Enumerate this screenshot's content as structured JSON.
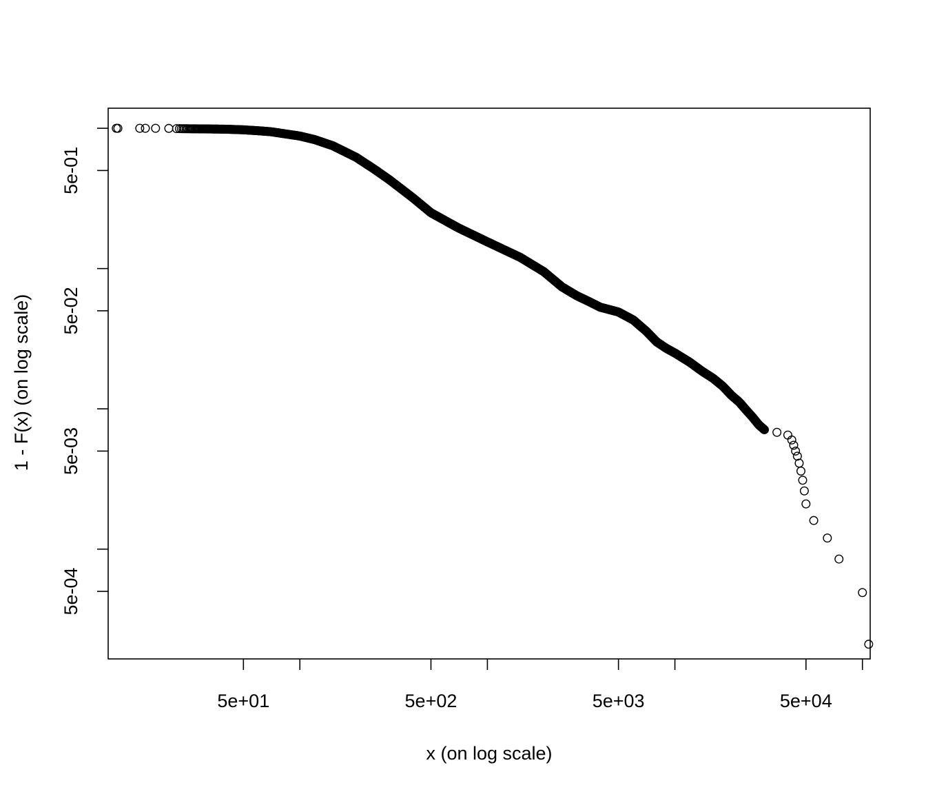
{
  "chart_data": {
    "type": "scatter",
    "title": "",
    "xlabel": "x (on log scale)",
    "ylabel": "1 - F(x) (on log scale)",
    "x_scale": "log",
    "y_scale": "log",
    "xlim": [
      9.5,
      110000
    ],
    "ylim": [
      0.000165,
      1.39
    ],
    "grid": false,
    "legend": "none",
    "marker": "open-circle",
    "colors": {
      "points": "#000000",
      "axes": "#000000"
    },
    "x_ticks": [
      {
        "value": 50,
        "label": "5e+01"
      },
      {
        "value": 100,
        "label": ""
      },
      {
        "value": 500,
        "label": "5e+02"
      },
      {
        "value": 1000,
        "label": ""
      },
      {
        "value": 5000,
        "label": "5e+03"
      },
      {
        "value": 10000,
        "label": ""
      },
      {
        "value": 50000,
        "label": "5e+04"
      },
      {
        "value": 100000,
        "label": ""
      }
    ],
    "y_ticks": [
      {
        "value": 0.0005,
        "label": "5e-04"
      },
      {
        "value": 0.001,
        "label": ""
      },
      {
        "value": 0.005,
        "label": "5e-03"
      },
      {
        "value": 0.01,
        "label": ""
      },
      {
        "value": 0.05,
        "label": "5e-02"
      },
      {
        "value": 0.1,
        "label": ""
      },
      {
        "value": 0.5,
        "label": "5e-01"
      },
      {
        "value": 1,
        "label": ""
      }
    ],
    "curve": [
      [
        22,
        0.994
      ],
      [
        30,
        0.99
      ],
      [
        40,
        0.985
      ],
      [
        50,
        0.975
      ],
      [
        60,
        0.96
      ],
      [
        70,
        0.945
      ],
      [
        80,
        0.92
      ],
      [
        100,
        0.88
      ],
      [
        120,
        0.83
      ],
      [
        150,
        0.75
      ],
      [
        200,
        0.62
      ],
      [
        250,
        0.51
      ],
      [
        300,
        0.43
      ],
      [
        400,
        0.32
      ],
      [
        500,
        0.25
      ],
      [
        700,
        0.195
      ],
      [
        1000,
        0.155
      ],
      [
        1500,
        0.12
      ],
      [
        2000,
        0.095
      ],
      [
        2500,
        0.074
      ],
      [
        3000,
        0.064
      ],
      [
        3500,
        0.058
      ],
      [
        4000,
        0.053
      ],
      [
        5000,
        0.049
      ],
      [
        6000,
        0.043
      ],
      [
        7000,
        0.036
      ],
      [
        8000,
        0.03
      ],
      [
        9000,
        0.027
      ],
      [
        10000,
        0.025
      ],
      [
        12000,
        0.0215
      ],
      [
        14000,
        0.0185
      ],
      [
        16000,
        0.0165
      ],
      [
        18000,
        0.0145
      ],
      [
        20000,
        0.0125
      ],
      [
        22000,
        0.0112
      ],
      [
        24000,
        0.0098
      ],
      [
        26000,
        0.0087
      ],
      [
        28000,
        0.0077
      ],
      [
        30000,
        0.0071
      ]
    ],
    "curve_points": 1200,
    "points": [
      [
        10.5,
        1.0
      ],
      [
        10.7,
        1.0
      ],
      [
        14,
        1.0
      ],
      [
        15,
        1.0
      ],
      [
        17,
        1.0
      ],
      [
        20,
        0.998
      ],
      [
        30000,
        0.0071
      ],
      [
        35000,
        0.0068
      ],
      [
        40000,
        0.0065
      ],
      [
        42000,
        0.006
      ],
      [
        43000,
        0.0055
      ],
      [
        44000,
        0.005
      ],
      [
        45000,
        0.0046
      ],
      [
        46000,
        0.0041
      ],
      [
        47000,
        0.0036
      ],
      [
        48000,
        0.0031
      ],
      [
        49000,
        0.0026
      ],
      [
        50000,
        0.0021
      ],
      [
        55000,
        0.0016
      ],
      [
        65000,
        0.0012
      ],
      [
        75000,
        0.00085
      ],
      [
        100000,
        0.00049
      ],
      [
        108000,
        0.00021
      ]
    ]
  }
}
